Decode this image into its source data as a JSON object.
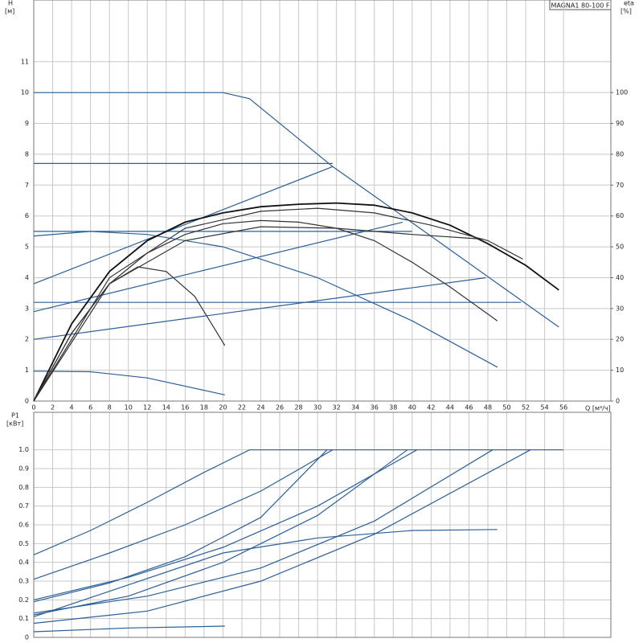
{
  "chart_data": [
    {
      "type": "line",
      "title": "MAGNA1 80-100 F",
      "y_label": "H",
      "y_unit": "[м]",
      "y2_label": "eta",
      "y2_unit": "[%]",
      "x_label": "Q [м³/ч]",
      "xlim": [
        0,
        61
      ],
      "xticks": [
        0,
        2,
        4,
        6,
        8,
        10,
        12,
        14,
        16,
        18,
        20,
        22,
        24,
        26,
        28,
        30,
        32,
        34,
        36,
        38,
        40,
        42,
        44,
        46,
        48,
        50,
        52,
        54,
        56
      ],
      "ylim": [
        0,
        13
      ],
      "yticks": [
        0,
        1,
        2,
        3,
        4,
        5,
        6,
        7,
        8,
        9,
        10,
        11
      ],
      "y2lim": [
        0,
        130
      ],
      "y2ticks": [
        0,
        10,
        20,
        30,
        40,
        50,
        60,
        70,
        80,
        90,
        100
      ],
      "grid": true,
      "series": [
        {
          "color": "#2b5f99",
          "x": [
            0,
            20,
            22.8,
            31.6,
            40,
            48,
            55.5
          ],
          "values": [
            10,
            10,
            9.8,
            7.6,
            5.78,
            4.03,
            2.4
          ]
        },
        {
          "color": "#2b5f99",
          "x": [
            0,
            31.6
          ],
          "values": [
            7.7,
            7.7
          ]
        },
        {
          "color": "#2b5f99",
          "x": [
            0,
            31.6
          ],
          "values": [
            3.8,
            7.6
          ]
        },
        {
          "color": "#2b5f99",
          "x": [
            0,
            40
          ],
          "values": [
            5.5,
            5.5
          ]
        },
        {
          "color": "#2b5f99",
          "x": [
            0,
            39
          ],
          "values": [
            2.9,
            5.8
          ]
        },
        {
          "color": "#2b5f99",
          "x": [
            0,
            51.5
          ],
          "values": [
            3.2,
            3.2
          ]
        },
        {
          "color": "#2b5f99",
          "x": [
            0,
            47.8
          ],
          "values": [
            2.0,
            4.0
          ]
        },
        {
          "color": "#2b5f99",
          "x": [
            0,
            6,
            12,
            20,
            30,
            40,
            49
          ],
          "values": [
            5.35,
            5.5,
            5.4,
            5.0,
            4.0,
            2.6,
            1.1
          ]
        },
        {
          "color": "#2b5f99",
          "x": [
            0,
            6,
            12,
            20.2
          ],
          "values": [
            0.97,
            0.95,
            0.75,
            0.2
          ]
        },
        {
          "color": "#111111",
          "axis": "y2",
          "x": [
            0,
            4,
            8,
            12,
            16,
            20,
            24,
            28,
            32,
            36,
            40,
            44,
            48,
            52,
            55.5
          ],
          "values": [
            0,
            25,
            42,
            52,
            58,
            61,
            63,
            63.8,
            64.2,
            63.5,
            61,
            57,
            51,
            44,
            36
          ]
        },
        {
          "color": "#333333",
          "axis": "y2",
          "x": [
            0,
            4,
            8,
            11,
            14,
            17,
            20.2
          ],
          "values": [
            0,
            22,
            38,
            43.5,
            42,
            34,
            18
          ]
        },
        {
          "color": "#333333",
          "axis": "y2",
          "x": [
            0,
            4,
            8,
            12,
            16,
            20,
            24,
            28,
            32,
            36,
            40,
            44,
            49
          ],
          "values": [
            0,
            22,
            38,
            48,
            54,
            57.5,
            58.5,
            58,
            56,
            52,
            45,
            37,
            26
          ]
        },
        {
          "color": "#333333",
          "axis": "y2",
          "x": [
            0,
            8,
            16,
            24,
            30,
            36,
            42,
            48,
            51.7
          ],
          "values": [
            0,
            40,
            56,
            61.5,
            62.5,
            61,
            57,
            52,
            46
          ]
        },
        {
          "color": "#333333",
          "axis": "y2",
          "x": [
            0,
            8,
            16,
            24,
            32,
            40,
            47.5
          ],
          "values": [
            0,
            38,
            52,
            56.5,
            56,
            54,
            52.5
          ]
        }
      ]
    },
    {
      "type": "line",
      "y_label": "P1",
      "y_unit": "[кВт]",
      "xlim": [
        0,
        61
      ],
      "ylim": [
        0,
        1.2
      ],
      "yticks": [
        0,
        0.1,
        0.2,
        0.3,
        0.4,
        0.5,
        0.6,
        0.7,
        0.8,
        0.9,
        {
          "value": 1,
          "label": "1.0"
        }
      ],
      "grid": true,
      "series": [
        {
          "color": "#2b5f99",
          "x": [
            0,
            6,
            12,
            18,
            22.8,
            56
          ],
          "values": [
            0.44,
            0.57,
            0.72,
            0.88,
            1.0,
            1.0
          ]
        },
        {
          "color": "#2b5f99",
          "x": [
            0,
            8,
            16,
            24,
            31.6
          ],
          "values": [
            0.31,
            0.45,
            0.6,
            0.78,
            1.0
          ]
        },
        {
          "color": "#2b5f99",
          "x": [
            0,
            8,
            16,
            24,
            31
          ],
          "values": [
            0.19,
            0.29,
            0.43,
            0.64,
            1.0
          ]
        },
        {
          "color": "#2b5f99",
          "x": [
            0,
            10,
            20,
            30,
            39.5
          ],
          "values": [
            0.12,
            0.22,
            0.4,
            0.65,
            1.0
          ]
        },
        {
          "color": "#2b5f99",
          "x": [
            0,
            10,
            20,
            30,
            40.5
          ],
          "values": [
            0.2,
            0.32,
            0.48,
            0.7,
            1.0
          ]
        },
        {
          "color": "#2b5f99",
          "x": [
            0,
            12,
            24,
            36,
            48.5
          ],
          "values": [
            0.13,
            0.22,
            0.37,
            0.62,
            1.0
          ]
        },
        {
          "color": "#2b5f99",
          "x": [
            0,
            12,
            24,
            36,
            52.5
          ],
          "values": [
            0.075,
            0.14,
            0.3,
            0.55,
            1.0
          ]
        },
        {
          "color": "#2b5f99",
          "x": [
            0,
            10,
            20,
            30,
            40,
            49
          ],
          "values": [
            0.11,
            0.28,
            0.45,
            0.53,
            0.57,
            0.575
          ]
        },
        {
          "color": "#2b5f99",
          "x": [
            0,
            10,
            20.2
          ],
          "values": [
            0.03,
            0.05,
            0.06
          ]
        }
      ]
    }
  ]
}
